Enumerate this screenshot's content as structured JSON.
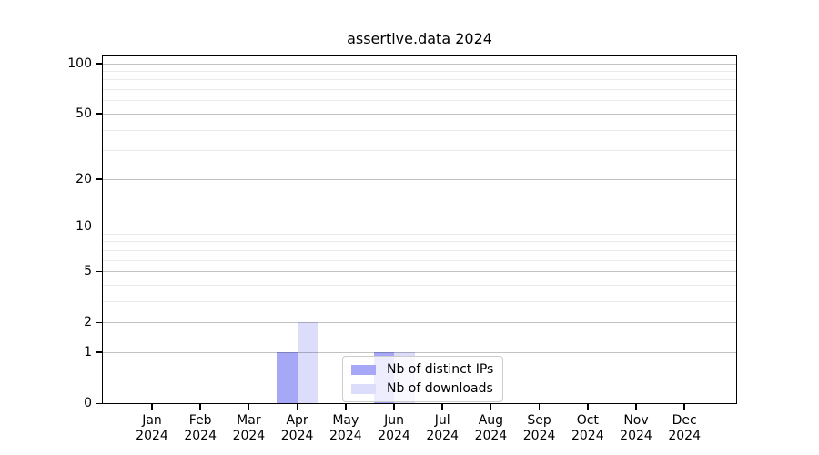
{
  "chart_data": {
    "type": "bar",
    "title": "assertive.data 2024",
    "x_categories": [
      "Jan",
      "Feb",
      "Mar",
      "Apr",
      "May",
      "Jun",
      "Jul",
      "Aug",
      "Sep",
      "Oct",
      "Nov",
      "Dec"
    ],
    "x_year": "2024",
    "series": [
      {
        "name": "Nb of distinct IPs",
        "color": "#a7a7f7",
        "values": [
          0,
          0,
          0,
          1,
          0,
          1,
          0,
          0,
          0,
          0,
          0,
          0
        ]
      },
      {
        "name": "Nb of downloads",
        "color": "#dcdcfb",
        "values": [
          0,
          0,
          0,
          2,
          0,
          1,
          0,
          0,
          0,
          0,
          0,
          0
        ]
      }
    ],
    "yscale": "log1p",
    "y_tick_values": [
      0,
      1,
      2,
      5,
      10,
      20,
      50,
      100
    ],
    "y_minor_gridline_values": [
      3,
      4,
      6,
      7,
      8,
      9,
      30,
      40,
      60,
      70,
      80,
      90
    ],
    "ylim": [
      0,
      112
    ],
    "grid": true,
    "grid_over_bars": true,
    "legend_position": "lower-center-inside",
    "colors": {
      "axis": "#000000",
      "major_grid": "rgba(0,0,0,0.24)",
      "minor_grid": "rgba(0,0,0,0.08)",
      "legend_border": "#cccccc",
      "legend_background": "rgba(255,255,255,0.8)",
      "background": "#ffffff"
    }
  }
}
